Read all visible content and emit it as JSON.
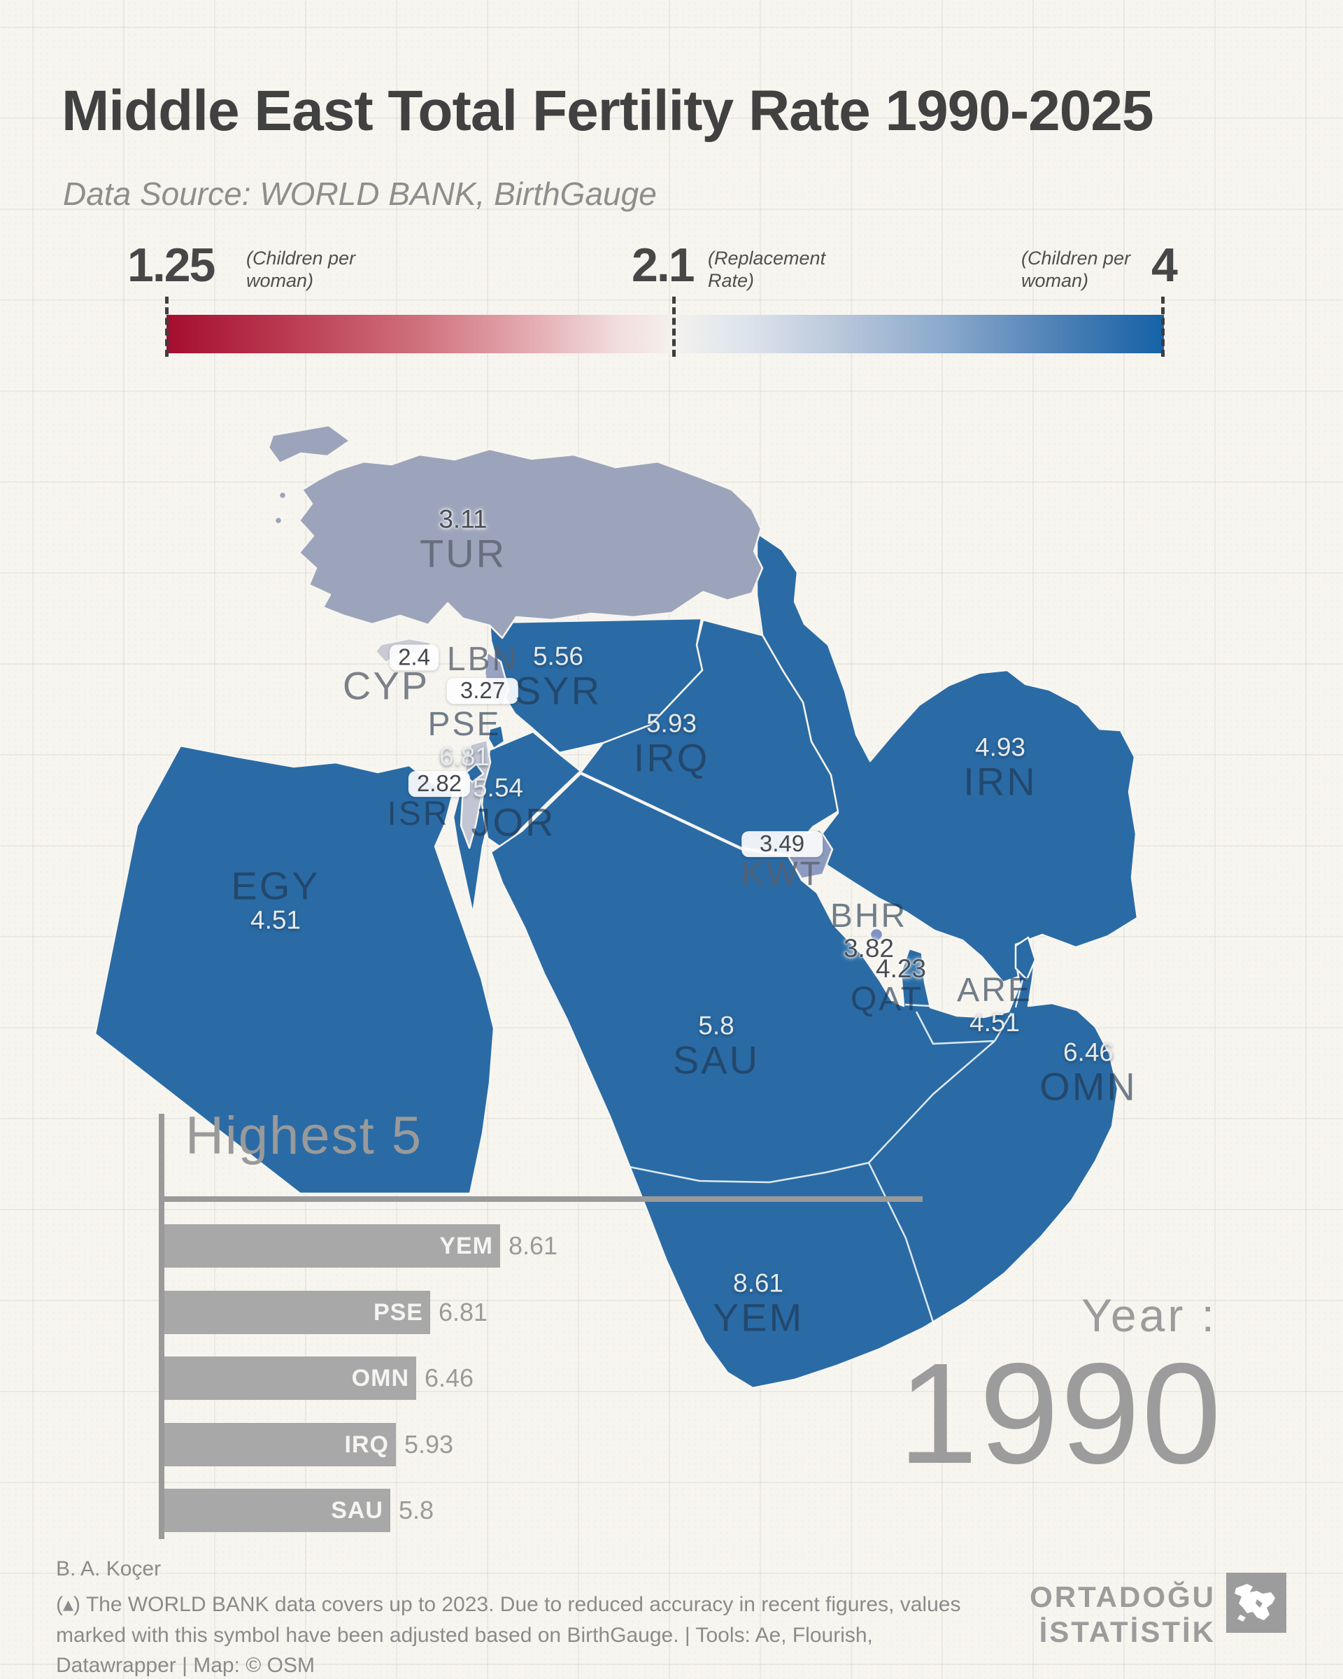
{
  "title": "Middle East Total Fertility Rate 1990-2025",
  "subtitle": "Data Source: WORLD BANK, BirthGauge",
  "legend": {
    "min_value": "1.25",
    "min_note_line1": "(Children per",
    "min_note_line2": "woman)",
    "mid_value": "2.1",
    "mid_note_line1": "(Replacement",
    "mid_note_line2": "Rate)",
    "max_value": "4",
    "max_note_line1": "(Children per",
    "max_note_line2": "woman)",
    "gradient_stops": [
      [
        0,
        "#a50d2f"
      ],
      [
        12,
        "#ba3a52"
      ],
      [
        25,
        "#cf6f7c"
      ],
      [
        36,
        "#e3a8ae"
      ],
      [
        45,
        "#f1dcdc"
      ],
      [
        51,
        "#f4f1ee"
      ],
      [
        58,
        "#dde4ec"
      ],
      [
        68,
        "#b7c6da"
      ],
      [
        78,
        "#8aa9cc"
      ],
      [
        88,
        "#5585b9"
      ],
      [
        96,
        "#2a6dab"
      ],
      [
        100,
        "#1563a7"
      ]
    ]
  },
  "map": {
    "countries": [
      {
        "code": "TUR",
        "value": "3.11",
        "fill": "#9ca4bb"
      },
      {
        "code": "CYP",
        "value": "2.4",
        "fill": "#c9cad3"
      },
      {
        "code": "LBN",
        "value": "3.27",
        "fill": "#98a2c2"
      },
      {
        "code": "SYR",
        "value": "5.56",
        "fill": "#2a6ba5"
      },
      {
        "code": "ISR",
        "value": "2.82",
        "fill": "#c2c5d4"
      },
      {
        "code": "PSE",
        "value": "6.81",
        "fill": "#2a6ba5"
      },
      {
        "code": "JOR",
        "value": "5.54",
        "fill": "#2a6ba5"
      },
      {
        "code": "IRQ",
        "value": "5.93",
        "fill": "#2a6ba5"
      },
      {
        "code": "IRN",
        "value": "4.93",
        "fill": "#2a6ba5"
      },
      {
        "code": "KWT",
        "value": "3.49",
        "fill": "#8e9bc0"
      },
      {
        "code": "BHR",
        "value": "3.82",
        "fill": "#7b92c4"
      },
      {
        "code": "QAT",
        "value": "4.23",
        "fill": "#2a6ba5"
      },
      {
        "code": "ARE",
        "value": "4.51",
        "fill": "#2a6ba5"
      },
      {
        "code": "SAU",
        "value": "5.8",
        "fill": "#2a6ba5"
      },
      {
        "code": "OMN",
        "value": "6.46",
        "fill": "#2a6ba5"
      },
      {
        "code": "YEM",
        "value": "8.61",
        "fill": "#2a6ba5"
      },
      {
        "code": "EGY",
        "value": "4.51",
        "fill": "#2a6ba5"
      }
    ]
  },
  "highest5": {
    "title": "Highest 5",
    "bars": [
      {
        "code": "YEM",
        "value": "8.61"
      },
      {
        "code": "PSE",
        "value": "6.81"
      },
      {
        "code": "OMN",
        "value": "6.46"
      },
      {
        "code": "IRQ",
        "value": "5.93"
      },
      {
        "code": "SAU",
        "value": "5.8"
      }
    ]
  },
  "year_panel": {
    "label": "Year :",
    "year": "1990"
  },
  "footer": {
    "author": "B. A. Koçer",
    "note": "(▴) The WORLD BANK data covers up to 2023. Due to reduced accuracy in recent figures, values marked with this symbol have been adjusted based on BirthGauge. | Tools: Ae, Flourish, Datawrapper | Map: © OSM",
    "brand_line1": "ORTADOĞU",
    "brand_line2": "İSTATİSTİK"
  },
  "chart_data": [
    {
      "type": "heatmap",
      "subtype": "choropleth-map",
      "title": "Middle East Total Fertility Rate 1990-2025",
      "year_shown": 1990,
      "unit": "children per woman",
      "color_scale": {
        "min": 1.25,
        "replacement_marker": 2.1,
        "max": 4,
        "min_color": "#a50d2f",
        "mid_color": "#f4f1ee",
        "max_color": "#1563a7"
      },
      "values": {
        "TUR": 3.11,
        "CYP": 2.4,
        "LBN": 3.27,
        "SYR": 5.56,
        "ISR": 2.82,
        "PSE": 6.81,
        "JOR": 5.54,
        "IRQ": 5.93,
        "IRN": 4.93,
        "KWT": 3.49,
        "BHR": 3.82,
        "QAT": 4.23,
        "ARE": 4.51,
        "SAU": 5.8,
        "OMN": 6.46,
        "YEM": 8.61,
        "EGY": 4.51
      }
    },
    {
      "type": "bar",
      "title": "Highest 5",
      "orientation": "horizontal",
      "categories": [
        "YEM",
        "PSE",
        "OMN",
        "IRQ",
        "SAU"
      ],
      "values": [
        8.61,
        6.81,
        6.46,
        5.93,
        5.8
      ],
      "xlim": [
        0,
        8.61
      ],
      "bar_color": "#a8a8a8",
      "grid": false,
      "legend_position": "none"
    }
  ]
}
